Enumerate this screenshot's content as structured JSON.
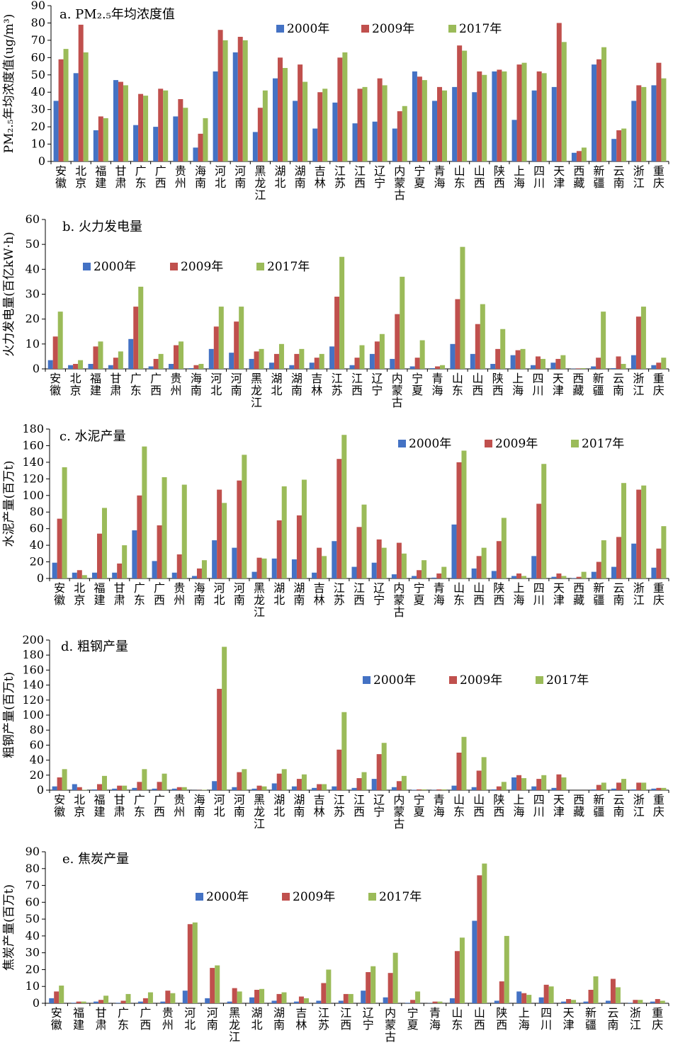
{
  "chart_data": [
    {
      "type": "bar",
      "title": "a. PM₂.₅年均浓度值",
      "ylabel": "PM₂.₅年均浓度值(ug/m³)",
      "ylim": [
        0,
        90
      ],
      "yticks": [
        0,
        10,
        20,
        30,
        40,
        50,
        60,
        70,
        80,
        90
      ],
      "legend": "top-center",
      "categories": [
        "安徽",
        "北京",
        "福建",
        "甘肃",
        "广东",
        "广西",
        "贵州",
        "海南",
        "河北",
        "河南",
        "黑龙江",
        "湖北",
        "湖南",
        "吉林",
        "江苏",
        "江西",
        "辽宁",
        "内蒙古",
        "宁夏",
        "青海",
        "山东",
        "山西",
        "陕西",
        "上海",
        "四川",
        "天津",
        "西藏",
        "新疆",
        "云南",
        "浙江",
        "重庆"
      ],
      "series": [
        {
          "name": "2000年",
          "color": "#4472C4",
          "values": [
            35,
            51,
            18,
            47,
            21,
            20,
            26,
            8,
            52,
            63,
            17,
            48,
            35,
            19,
            34,
            22,
            23,
            19,
            52,
            35,
            43,
            40,
            52,
            24,
            41,
            43,
            5,
            56,
            13,
            35,
            44
          ]
        },
        {
          "name": "2009年",
          "color": "#C0504D",
          "values": [
            59,
            79,
            26,
            46,
            39,
            42,
            36,
            16,
            76,
            72,
            31,
            60,
            56,
            40,
            60,
            42,
            48,
            29,
            49,
            43,
            67,
            52,
            53,
            56,
            52,
            80,
            6,
            59,
            18,
            44,
            57
          ]
        },
        {
          "name": "2017年",
          "color": "#9BBB59",
          "values": [
            65,
            63,
            25,
            44,
            38,
            41,
            31,
            25,
            70,
            70,
            41,
            54,
            46,
            42,
            63,
            43,
            44,
            32,
            47,
            41,
            64,
            50,
            52,
            57,
            51,
            69,
            8,
            66,
            19,
            43,
            48
          ]
        }
      ]
    },
    {
      "type": "bar",
      "title": "b. 火力发电量",
      "ylabel": "火力发电量(百亿kW·h)",
      "ylim": [
        0,
        60
      ],
      "yticks": [
        0,
        10,
        20,
        30,
        40,
        50,
        60
      ],
      "legend": "upper-left",
      "categories": [
        "安徽",
        "北京",
        "福建",
        "甘肃",
        "广东",
        "广西",
        "贵州",
        "海南",
        "河北",
        "河南",
        "黑龙江",
        "湖北",
        "湖南",
        "吉林",
        "江苏",
        "江西",
        "辽宁",
        "内蒙古",
        "宁夏",
        "青海",
        "山东",
        "山西",
        "陕西",
        "上海",
        "四川",
        "天津",
        "西藏",
        "新疆",
        "云南",
        "浙江",
        "重庆"
      ],
      "series": [
        {
          "name": "2000年",
          "color": "#4472C4",
          "values": [
            3.5,
            1.5,
            2,
            1.5,
            12,
            1,
            2,
            0.3,
            8,
            6.5,
            4,
            2.5,
            1.5,
            2.5,
            9,
            1.5,
            6,
            4,
            1,
            0.3,
            10,
            6,
            2,
            5.5,
            1.5,
            2.5,
            0.1,
            1,
            0.3,
            5.5,
            1.5
          ]
        },
        {
          "name": "2009年",
          "color": "#C0504D",
          "values": [
            13,
            2,
            9,
            4.5,
            25,
            4,
            9.5,
            1.5,
            17,
            19,
            7,
            6,
            6,
            4.5,
            29,
            4.5,
            11,
            22,
            4.5,
            1,
            28,
            18,
            8,
            7.5,
            5,
            4,
            0.2,
            4.5,
            5,
            21,
            2.5
          ]
        },
        {
          "name": "2017年",
          "color": "#9BBB59",
          "values": [
            23,
            3.5,
            11,
            7,
            33,
            6,
            11,
            2,
            25,
            25,
            8,
            10,
            8,
            6,
            45,
            9.5,
            14,
            37,
            11.5,
            1.5,
            49,
            26,
            16,
            8,
            4,
            5.5,
            0.3,
            23,
            2,
            25,
            4.5
          ]
        }
      ]
    },
    {
      "type": "bar",
      "title": "c. 水泥产量",
      "ylabel": "水泥产量(百万t)",
      "ylim": [
        0,
        180
      ],
      "yticks": [
        0,
        20,
        40,
        60,
        80,
        100,
        120,
        140,
        160,
        180
      ],
      "legend": "top-right",
      "categories": [
        "安徽",
        "北京",
        "福建",
        "甘肃",
        "广东",
        "广西",
        "贵州",
        "海南",
        "河北",
        "河南",
        "黑龙江",
        "湖北",
        "湖南",
        "吉林",
        "江苏",
        "江西",
        "辽宁",
        "内蒙古",
        "宁夏",
        "青海",
        "山东",
        "山西",
        "陕西",
        "上海",
        "四川",
        "天津",
        "西藏",
        "新疆",
        "云南",
        "浙江",
        "重庆"
      ],
      "series": [
        {
          "name": "2000年",
          "color": "#4472C4",
          "values": [
            19,
            7,
            7,
            7,
            58,
            21,
            7,
            3,
            46,
            37,
            8,
            24,
            23,
            7,
            45,
            14,
            19,
            5,
            3,
            1,
            65,
            12,
            9,
            3,
            27,
            2,
            0.5,
            8,
            14,
            42,
            13
          ]
        },
        {
          "name": "2009年",
          "color": "#C0504D",
          "values": [
            72,
            10,
            54,
            18,
            100,
            64,
            29,
            12,
            107,
            118,
            25,
            70,
            76,
            37,
            144,
            62,
            47,
            43,
            10,
            6,
            140,
            27,
            45,
            6,
            90,
            6,
            2,
            20,
            50,
            107,
            36
          ]
        },
        {
          "name": "2017年",
          "color": "#9BBB59",
          "values": [
            134,
            4,
            85,
            40,
            159,
            122,
            113,
            22,
            91,
            149,
            24,
            111,
            119,
            27,
            173,
            89,
            37,
            30,
            22,
            14,
            154,
            37,
            73,
            3,
            138,
            3,
            8,
            46,
            115,
            112,
            63
          ]
        }
      ]
    },
    {
      "type": "bar",
      "title": "d. 粗钢产量",
      "ylabel": "粗钢产量(百万t)",
      "ylim": [
        0,
        200
      ],
      "yticks": [
        0,
        20,
        40,
        60,
        80,
        100,
        120,
        140,
        160,
        180,
        200
      ],
      "legend": "top-right",
      "categories": [
        "安徽",
        "北京",
        "福建",
        "甘肃",
        "广东",
        "广西",
        "贵州",
        "海南",
        "河北",
        "河南",
        "黑龙江",
        "湖北",
        "湖南",
        "吉林",
        "江苏",
        "江西",
        "辽宁",
        "内蒙古",
        "宁夏",
        "青海",
        "山东",
        "山西",
        "陕西",
        "上海",
        "四川",
        "天津",
        "西藏",
        "新疆",
        "云南",
        "浙江",
        "重庆"
      ],
      "series": [
        {
          "name": "2000年",
          "color": "#4472C4",
          "values": [
            5,
            8,
            1,
            2,
            3,
            2,
            2,
            0.1,
            12,
            4,
            2,
            9,
            5,
            3,
            5,
            3,
            15,
            4,
            0.5,
            0.3,
            6,
            4,
            1,
            17,
            5,
            3,
            0,
            1,
            2,
            1,
            2
          ]
        },
        {
          "name": "2009年",
          "color": "#C0504D",
          "values": [
            17,
            4,
            8,
            6,
            11,
            11,
            4,
            0.2,
            135,
            24,
            6,
            22,
            15,
            8,
            54,
            16,
            48,
            12,
            1,
            1,
            50,
            26,
            5,
            20,
            15,
            21,
            0,
            7,
            10,
            10,
            3
          ]
        },
        {
          "name": "2017年",
          "color": "#9BBB59",
          "values": [
            28,
            0.5,
            19,
            6,
            28,
            22,
            4,
            0.5,
            191,
            28,
            5,
            28,
            21,
            8,
            104,
            24,
            63,
            19,
            1,
            1,
            71,
            44,
            11,
            16,
            20,
            17,
            0,
            10,
            15,
            10,
            3
          ]
        }
      ]
    },
    {
      "type": "bar",
      "title": "e. 焦炭产量",
      "ylabel": "焦炭产量(百万t)",
      "ylim": [
        0,
        90
      ],
      "yticks": [
        0,
        10,
        20,
        30,
        40,
        50,
        60,
        70,
        80,
        90
      ],
      "legend": "top-center",
      "categories": [
        "安徽",
        "福建",
        "甘肃",
        "广东",
        "广西",
        "贵州",
        "河北",
        "河南",
        "黑龙江",
        "湖北",
        "湖南",
        "吉林",
        "江苏",
        "江西",
        "辽宁",
        "内蒙古",
        "宁夏",
        "青海",
        "山东",
        "山西",
        "陕西",
        "上海",
        "四川",
        "天津",
        "新疆",
        "云南",
        "浙江",
        "重庆"
      ],
      "series": [
        {
          "name": "2000年",
          "color": "#4472C4",
          "values": [
            3,
            0.3,
            1,
            0.3,
            1,
            1,
            7.5,
            3,
            1,
            3.5,
            1.5,
            1,
            1.5,
            1.5,
            7.5,
            3.5,
            0.3,
            0.1,
            3,
            49,
            1.5,
            7,
            3.5,
            1,
            1,
            1.5,
            0.3,
            1
          ]
        },
        {
          "name": "2009年",
          "color": "#C0504D",
          "values": [
            7,
            1,
            2,
            1.5,
            3,
            7.5,
            47,
            21,
            9,
            8,
            5.5,
            4,
            12,
            5.5,
            18.5,
            18,
            2,
            1,
            31,
            76,
            13,
            6,
            11,
            2.5,
            8,
            14.5,
            2,
            2.5
          ]
        },
        {
          "name": "2017年",
          "color": "#9BBB59",
          "values": [
            10.5,
            1,
            4.5,
            5.5,
            6.5,
            6,
            48,
            22.5,
            7,
            8.5,
            6.5,
            3,
            20,
            5.5,
            22,
            30,
            7,
            1,
            39,
            83,
            40,
            5,
            10,
            2,
            16,
            9.5,
            2,
            1.5
          ]
        }
      ]
    }
  ]
}
